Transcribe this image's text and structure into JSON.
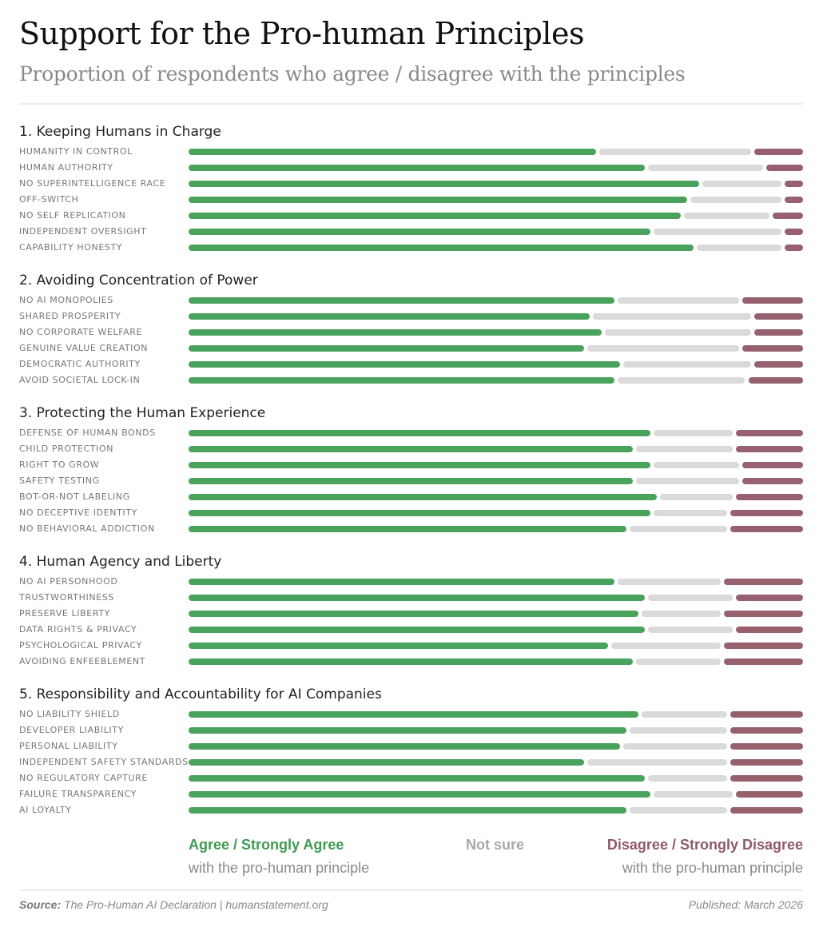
{
  "header": {
    "title": "Support for the Pro-human Principles",
    "subtitle": "Proportion of respondents who agree / disagree with the principles"
  },
  "colors": {
    "agree": "#4aa35c",
    "not_sure": "#dadada",
    "disagree": "#96606f",
    "agree_text": "#3f9a52",
    "not_sure_text": "#a8a8a8",
    "disagree_text": "#8f5a6a"
  },
  "legend": {
    "agree_label": "Agree / Strongly Agree",
    "agree_sub": "with the pro-human principle",
    "not_sure_label": "Not sure",
    "disagree_label": "Disagree / Strongly Disagree",
    "disagree_sub": "with the pro-human principle"
  },
  "footer": {
    "source_label": "Source:",
    "source_text": "The Pro-Human AI Declaration | humanstatement.org",
    "published": "Published: March 2026"
  },
  "chart_data": {
    "type": "bar",
    "orientation": "horizontal-stacked",
    "title": "Support for the Pro-human Principles",
    "subtitle": "Proportion of respondents who agree / disagree with the principles",
    "series_names": [
      "Agree / Strongly Agree",
      "Not sure",
      "Disagree / Strongly Disagree"
    ],
    "units": "percent of respondents",
    "xlim": [
      0,
      100
    ],
    "legend_position": "bottom",
    "sections": [
      {
        "title": "1. Keeping Humans in Charge",
        "rows": [
          {
            "label": "HUMANITY IN CONTROL",
            "agree": 67,
            "not_sure": 25,
            "disagree": 8
          },
          {
            "label": "HUMAN AUTHORITY",
            "agree": 75,
            "not_sure": 19,
            "disagree": 6
          },
          {
            "label": "NO SUPERINTELLIGENCE RACE",
            "agree": 84,
            "not_sure": 13,
            "disagree": 3
          },
          {
            "label": "OFF-SWITCH",
            "agree": 82,
            "not_sure": 15,
            "disagree": 3
          },
          {
            "label": "NO SELF REPLICATION",
            "agree": 81,
            "not_sure": 14,
            "disagree": 5
          },
          {
            "label": "INDEPENDENT OVERSIGHT",
            "agree": 76,
            "not_sure": 21,
            "disagree": 3
          },
          {
            "label": "CAPABILITY HONESTY",
            "agree": 83,
            "not_sure": 14,
            "disagree": 3
          }
        ]
      },
      {
        "title": "2. Avoiding Concentration of Power",
        "rows": [
          {
            "label": "NO AI MONOPOLIES",
            "agree": 70,
            "not_sure": 20,
            "disagree": 10
          },
          {
            "label": "SHARED PROSPERITY",
            "agree": 66,
            "not_sure": 26,
            "disagree": 8
          },
          {
            "label": "NO CORPORATE WELFARE",
            "agree": 68,
            "not_sure": 24,
            "disagree": 8
          },
          {
            "label": "GENUINE VALUE CREATION",
            "agree": 65,
            "not_sure": 25,
            "disagree": 10
          },
          {
            "label": "DEMOCRATIC AUTHORITY",
            "agree": 71,
            "not_sure": 21,
            "disagree": 8
          },
          {
            "label": "AVOID SOCIETAL LOCK-IN",
            "agree": 70,
            "not_sure": 21,
            "disagree": 9
          }
        ]
      },
      {
        "title": "3. Protecting the Human Experience",
        "rows": [
          {
            "label": "DEFENSE OF HUMAN BONDS",
            "agree": 76,
            "not_sure": 13,
            "disagree": 11
          },
          {
            "label": "CHILD PROTECTION",
            "agree": 73,
            "not_sure": 16,
            "disagree": 11
          },
          {
            "label": "RIGHT TO GROW",
            "agree": 76,
            "not_sure": 14,
            "disagree": 10
          },
          {
            "label": "SAFETY TESTING",
            "agree": 73,
            "not_sure": 17,
            "disagree": 10
          },
          {
            "label": "BOT-OR-NOT LABELING",
            "agree": 77,
            "not_sure": 12,
            "disagree": 11
          },
          {
            "label": "NO DECEPTIVE IDENTITY",
            "agree": 76,
            "not_sure": 12,
            "disagree": 12
          },
          {
            "label": "NO BEHAVIORAL ADDICTION",
            "agree": 72,
            "not_sure": 16,
            "disagree": 12
          }
        ]
      },
      {
        "title": "4. Human Agency and Liberty",
        "rows": [
          {
            "label": "NO AI PERSONHOOD",
            "agree": 70,
            "not_sure": 17,
            "disagree": 13
          },
          {
            "label": "TRUSTWORTHINESS",
            "agree": 75,
            "not_sure": 14,
            "disagree": 11
          },
          {
            "label": "PRESERVE LIBERTY",
            "agree": 74,
            "not_sure": 13,
            "disagree": 13
          },
          {
            "label": "DATA RIGHTS & PRIVACY",
            "agree": 75,
            "not_sure": 14,
            "disagree": 11
          },
          {
            "label": "PSYCHOLOGICAL PRIVACY",
            "agree": 69,
            "not_sure": 18,
            "disagree": 13
          },
          {
            "label": "AVOIDING ENFEEBLEMENT",
            "agree": 73,
            "not_sure": 14,
            "disagree": 13
          }
        ]
      },
      {
        "title": "5. Responsibility and Accountability for AI Companies",
        "rows": [
          {
            "label": "NO LIABILITY SHIELD",
            "agree": 74,
            "not_sure": 14,
            "disagree": 12
          },
          {
            "label": "DEVELOPER LIABILITY",
            "agree": 72,
            "not_sure": 16,
            "disagree": 12
          },
          {
            "label": "PERSONAL LIABILITY",
            "agree": 71,
            "not_sure": 17,
            "disagree": 12
          },
          {
            "label": "INDEPENDENT SAFETY STANDARDS",
            "agree": 65,
            "not_sure": 23,
            "disagree": 12
          },
          {
            "label": "NO REGULATORY CAPTURE",
            "agree": 75,
            "not_sure": 13,
            "disagree": 12
          },
          {
            "label": "FAILURE TRANSPARENCY",
            "agree": 76,
            "not_sure": 13,
            "disagree": 11
          },
          {
            "label": "AI LOYALTY",
            "agree": 72,
            "not_sure": 16,
            "disagree": 12
          }
        ]
      }
    ]
  }
}
